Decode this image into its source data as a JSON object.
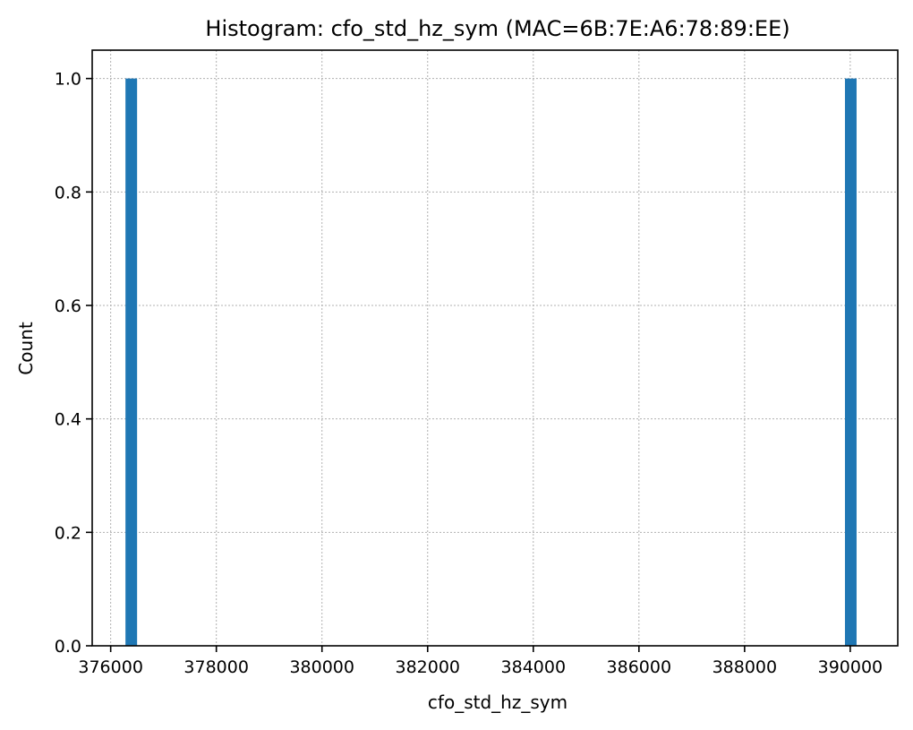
{
  "chart_data": {
    "type": "bar",
    "title": "Histogram: cfo_std_hz_sym (MAC=6B:7E:A6:78:89:EE)",
    "xlabel": "cfo_std_hz_sym",
    "ylabel": "Count",
    "xlim": [
      375650,
      390900
    ],
    "ylim": [
      0,
      1.05
    ],
    "x_ticks": [
      376000,
      378000,
      380000,
      382000,
      384000,
      386000,
      388000,
      390000
    ],
    "x_tick_labels": [
      "376000",
      "378000",
      "380000",
      "382000",
      "384000",
      "386000",
      "388000",
      "390000"
    ],
    "y_ticks": [
      0.0,
      0.2,
      0.4,
      0.6,
      0.8,
      1.0
    ],
    "y_tick_labels": [
      "0.0",
      "0.2",
      "0.4",
      "0.6",
      "0.8",
      "1.0"
    ],
    "grid": true,
    "bars": [
      {
        "x_start": 376280,
        "x_end": 376500,
        "count": 1
      },
      {
        "x_start": 389900,
        "x_end": 390120,
        "count": 1
      }
    ],
    "bar_color": "#1f77b4"
  }
}
